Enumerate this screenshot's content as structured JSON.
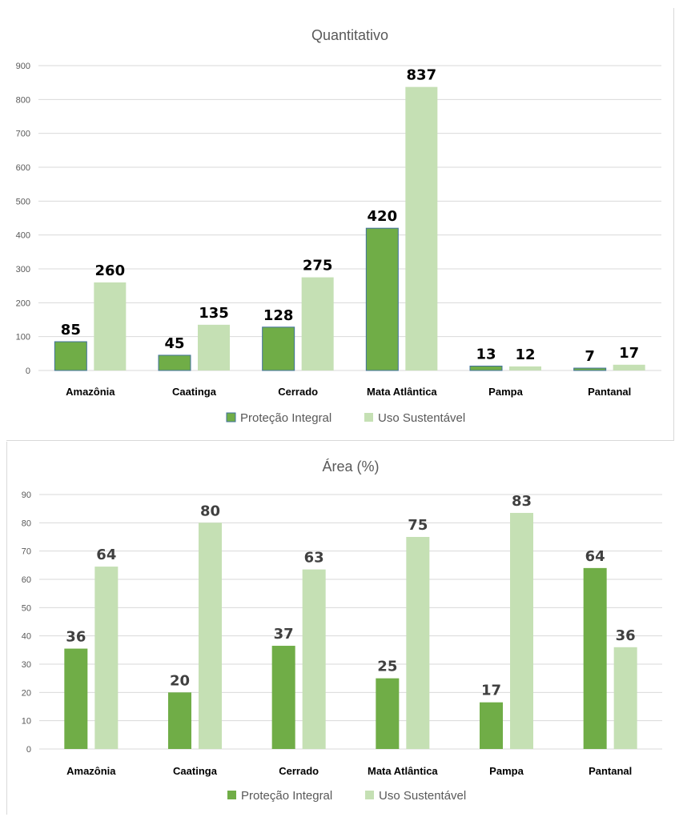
{
  "chart_data": [
    {
      "type": "bar",
      "title": "Quantitativo",
      "categories": [
        "Amazônia",
        "Caatinga",
        "Cerrado",
        "Mata Atlântica",
        "Pampa",
        "Pantanal"
      ],
      "series": [
        {
          "name": "Proteção Integral",
          "values": [
            85,
            45,
            128,
            420,
            13,
            7
          ],
          "color": "#70ad47"
        },
        {
          "name": "Uso Sustentável",
          "values": [
            260,
            135,
            275,
            837,
            12,
            17
          ],
          "color": "#c5e0b4"
        }
      ],
      "data_labels": [
        [
          "85",
          "45",
          "128",
          "420",
          "13",
          "7"
        ],
        [
          "260",
          "135",
          "275",
          "837",
          "12",
          "17"
        ]
      ],
      "label_color": "#000000",
      "ylim": [
        0,
        900
      ],
      "yticks": [
        0,
        100,
        200,
        300,
        400,
        500,
        600,
        700,
        800,
        900
      ],
      "ytick_labels": [
        "0",
        "100",
        "200",
        "300",
        "400",
        "500",
        "600",
        "700",
        "800",
        "900"
      ],
      "grid": true,
      "legend_position": "bottom"
    },
    {
      "type": "bar",
      "title": "Área (%)",
      "categories": [
        "Amazônia",
        "Caatinga",
        "Cerrado",
        "Mata Atlântica",
        "Pampa",
        "Pantanal"
      ],
      "series": [
        {
          "name": "Proteção Integral",
          "values": [
            35.5,
            20,
            36.5,
            25,
            16.5,
            64
          ],
          "color": "#70ad47"
        },
        {
          "name": "Uso Sustentável",
          "values": [
            64.5,
            80,
            63.5,
            75,
            83.5,
            36
          ],
          "color": "#c5e0b4"
        }
      ],
      "data_labels": [
        [
          "36",
          "20",
          "37",
          "25",
          "17",
          "64"
        ],
        [
          "64",
          "80",
          "63",
          "75",
          "83",
          "36"
        ]
      ],
      "label_color": "#404040",
      "ylim": [
        0,
        90
      ],
      "yticks": [
        0,
        10,
        20,
        30,
        40,
        50,
        60,
        70,
        80,
        90
      ],
      "ytick_labels": [
        "0",
        "10",
        "20",
        "30",
        "40",
        "50",
        "60",
        "70",
        "80",
        "90"
      ],
      "grid": true,
      "legend_position": "bottom"
    }
  ]
}
